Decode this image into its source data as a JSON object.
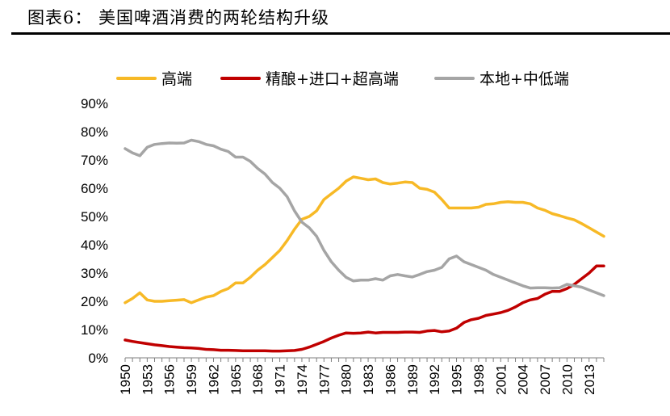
{
  "title": "图表6：  美国啤酒消费的两轮结构升级",
  "chart_data": {
    "type": "line",
    "title": "图表6：  美国啤酒消费的两轮结构升级",
    "xlabel": "",
    "ylabel": "",
    "x": [
      1950,
      1951,
      1952,
      1953,
      1954,
      1955,
      1956,
      1957,
      1958,
      1959,
      1960,
      1961,
      1962,
      1963,
      1964,
      1965,
      1966,
      1967,
      1968,
      1969,
      1970,
      1971,
      1972,
      1973,
      1974,
      1975,
      1976,
      1977,
      1978,
      1979,
      1980,
      1981,
      1982,
      1983,
      1984,
      1985,
      1986,
      1987,
      1988,
      1989,
      1990,
      1991,
      1992,
      1993,
      1994,
      1995,
      1996,
      1997,
      1998,
      1999,
      2000,
      2001,
      2002,
      2003,
      2004,
      2005,
      2006,
      2007,
      2008,
      2009,
      2010,
      2011,
      2012,
      2013,
      2014,
      2015
    ],
    "xticks": [
      "1950",
      "1953",
      "1956",
      "1959",
      "1962",
      "1965",
      "1968",
      "1971",
      "1974",
      "1977",
      "1980",
      "1983",
      "1986",
      "1989",
      "1992",
      "1995",
      "1998",
      "2001",
      "2004",
      "2007",
      "2010",
      "2013"
    ],
    "yticks": [
      "0%",
      "10%",
      "20%",
      "30%",
      "40%",
      "50%",
      "60%",
      "70%",
      "80%",
      "90%"
    ],
    "ylim": [
      0,
      90
    ],
    "legend_position": "top",
    "series": [
      {
        "name": "高端",
        "color": "#f7b926",
        "values": [
          19.5,
          21,
          23,
          20.5,
          20,
          20,
          20.2,
          20.4,
          20.6,
          19.5,
          20.5,
          21.5,
          22,
          23.5,
          24.5,
          26.5,
          26.5,
          28.5,
          31,
          33,
          35.5,
          38,
          41.5,
          45.5,
          49,
          50,
          52,
          56,
          58,
          60,
          62.5,
          64,
          63.5,
          63,
          63.3,
          62,
          61.5,
          61.8,
          62.2,
          62,
          60,
          59.6,
          58.6,
          56,
          53,
          53,
          53,
          53,
          53.3,
          54.3,
          54.5,
          55,
          55.2,
          55,
          55,
          54.5,
          53,
          52.2,
          51,
          50.3,
          49.5,
          48.8,
          47.5,
          46,
          44.5,
          43
        ]
      },
      {
        "name": "精酿+进口+超高端",
        "color": "#c00000",
        "values": [
          6.3,
          5.8,
          5.4,
          5,
          4.6,
          4.3,
          4,
          3.8,
          3.6,
          3.5,
          3.3,
          3,
          2.9,
          2.7,
          2.7,
          2.6,
          2.5,
          2.5,
          2.5,
          2.5,
          2.4,
          2.4,
          2.5,
          2.6,
          3,
          3.8,
          4.8,
          5.8,
          7,
          8,
          8.8,
          8.7,
          8.8,
          9.1,
          8.8,
          9,
          9,
          9,
          9.1,
          9.1,
          9,
          9.5,
          9.7,
          9.2,
          9.5,
          10.5,
          12.5,
          13.5,
          14,
          15,
          15.5,
          16,
          16.8,
          18,
          19.5,
          20.5,
          21,
          22.5,
          23.5,
          23.5,
          24.5,
          26,
          28,
          30,
          32.5,
          32.5
        ]
      },
      {
        "name": "本地+中低端",
        "color": "#a5a5a5",
        "values": [
          74,
          72.5,
          71.5,
          74.5,
          75.5,
          75.8,
          76,
          75.9,
          76,
          77,
          76.5,
          75.5,
          75,
          73.8,
          73,
          71,
          71,
          69.5,
          67,
          65,
          62,
          60,
          57,
          52,
          48,
          46,
          43,
          38,
          34,
          31,
          28.5,
          27.2,
          27.5,
          27.5,
          28,
          27.5,
          29,
          29.5,
          29,
          28.6,
          29.5,
          30.5,
          31,
          32,
          35,
          36,
          34,
          33,
          32,
          31,
          29.5,
          28.5,
          27.5,
          26.5,
          25.5,
          24.7,
          24.8,
          24.8,
          24.7,
          24.8,
          26,
          25.5,
          25,
          24,
          23,
          22
        ]
      }
    ]
  }
}
